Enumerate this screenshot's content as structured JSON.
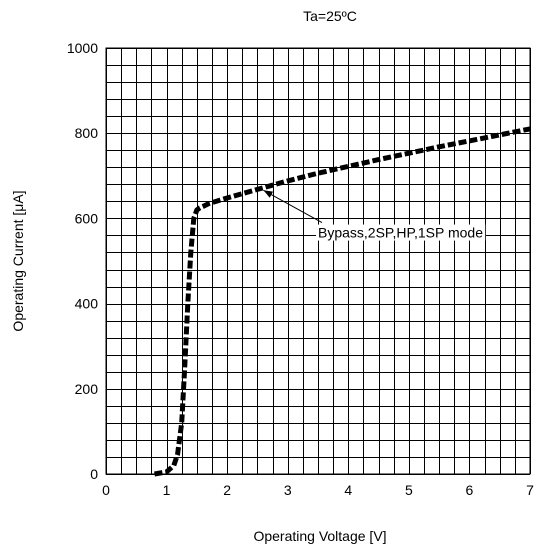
{
  "chart_data": {
    "type": "line",
    "title": "Ta=25ºC",
    "xlabel": "Operating Voltage [V]",
    "ylabel": "Operating Current [μA]",
    "xlim": [
      0,
      7
    ],
    "ylim": [
      0,
      1000
    ],
    "x_ticks": [
      0,
      1,
      2,
      3,
      4,
      5,
      6,
      7
    ],
    "y_ticks": [
      0,
      200,
      400,
      600,
      800,
      1000
    ],
    "x_minor_step": 0.25,
    "y_minor_step": 40,
    "grid": true,
    "series": [
      {
        "x": [
          0.8,
          1.0,
          1.12,
          1.18,
          1.25,
          1.3,
          1.35,
          1.4,
          1.45,
          1.5,
          1.55,
          1.6,
          1.7,
          2.0,
          2.5,
          3.0,
          3.5,
          4.0,
          4.5,
          5.0,
          5.5,
          6.0,
          6.5,
          7.0
        ],
        "y": [
          0,
          5,
          20,
          45,
          120,
          250,
          400,
          520,
          600,
          620,
          625,
          628,
          635,
          648,
          668,
          688,
          706,
          722,
          738,
          753,
          768,
          782,
          796,
          810
        ]
      }
    ],
    "annotation": {
      "text": "Bypass,2SP,HP,1SP mode",
      "target": [
        2.6,
        666
      ],
      "label_at": [
        3.5,
        555
      ]
    }
  }
}
